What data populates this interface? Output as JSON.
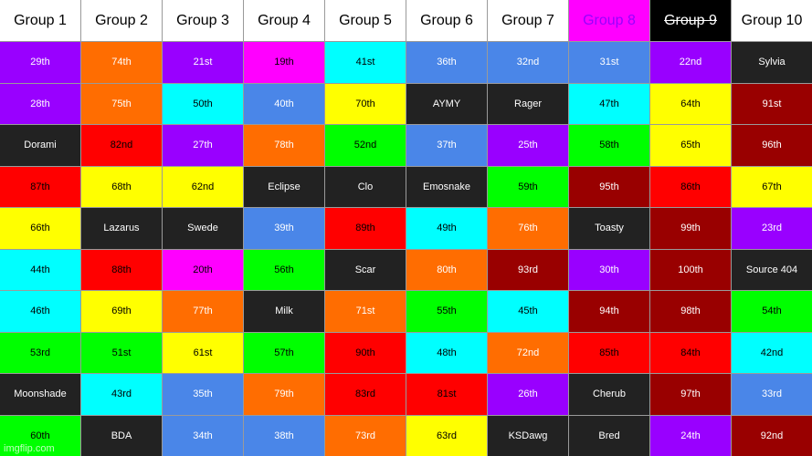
{
  "colors": {
    "purple": "#9900ff",
    "orange": "#ff6d01",
    "magenta": "#ff00ff",
    "cyan": "#00ffff",
    "blue": "#4a86e8",
    "dark": "#222222",
    "red": "#ff0000",
    "green": "#00ff00",
    "yellow": "#ffff00",
    "maroon": "#990000",
    "white": "#ffffff",
    "black": "#000000"
  },
  "headers": [
    {
      "label": "Group 1",
      "bg": "white",
      "fg": "black",
      "struck": false
    },
    {
      "label": "Group 2",
      "bg": "white",
      "fg": "black",
      "struck": false
    },
    {
      "label": "Group 3",
      "bg": "white",
      "fg": "black",
      "struck": false
    },
    {
      "label": "Group 4",
      "bg": "white",
      "fg": "black",
      "struck": false
    },
    {
      "label": "Group 5",
      "bg": "white",
      "fg": "black",
      "struck": false
    },
    {
      "label": "Group 6",
      "bg": "white",
      "fg": "black",
      "struck": false
    },
    {
      "label": "Group 7",
      "bg": "white",
      "fg": "black",
      "struck": false
    },
    {
      "label": "Group 8",
      "bg": "magenta",
      "fg": "purple",
      "struck": false
    },
    {
      "label": "Group 9",
      "bg": "black",
      "fg": "white",
      "struck": true
    },
    {
      "label": "Group 10",
      "bg": "white",
      "fg": "black",
      "struck": false
    }
  ],
  "rows": [
    [
      {
        "text": "29th",
        "color": "purple"
      },
      {
        "text": "74th",
        "color": "orange"
      },
      {
        "text": "21st",
        "color": "purple"
      },
      {
        "text": "19th",
        "color": "magenta"
      },
      {
        "text": "41st",
        "color": "cyan"
      },
      {
        "text": "36th",
        "color": "blue"
      },
      {
        "text": "32nd",
        "color": "blue"
      },
      {
        "text": "31st",
        "color": "blue"
      },
      {
        "text": "22nd",
        "color": "purple"
      },
      {
        "text": "Sylvia",
        "color": "dark"
      }
    ],
    [
      {
        "text": "28th",
        "color": "purple"
      },
      {
        "text": "75th",
        "color": "orange"
      },
      {
        "text": "50th",
        "color": "cyan"
      },
      {
        "text": "40th",
        "color": "blue"
      },
      {
        "text": "70th",
        "color": "yellow"
      },
      {
        "text": "AYMY",
        "color": "dark"
      },
      {
        "text": "Rager",
        "color": "dark"
      },
      {
        "text": "47th",
        "color": "cyan"
      },
      {
        "text": "64th",
        "color": "yellow"
      },
      {
        "text": "91st",
        "color": "maroon"
      }
    ],
    [
      {
        "text": "Dorami",
        "color": "dark"
      },
      {
        "text": "82nd",
        "color": "red"
      },
      {
        "text": "27th",
        "color": "purple"
      },
      {
        "text": "78th",
        "color": "orange"
      },
      {
        "text": "52nd",
        "color": "green"
      },
      {
        "text": "37th",
        "color": "blue"
      },
      {
        "text": "25th",
        "color": "purple"
      },
      {
        "text": "58th",
        "color": "green"
      },
      {
        "text": "65th",
        "color": "yellow"
      },
      {
        "text": "96th",
        "color": "maroon"
      }
    ],
    [
      {
        "text": "87th",
        "color": "red"
      },
      {
        "text": "68th",
        "color": "yellow"
      },
      {
        "text": "62nd",
        "color": "yellow"
      },
      {
        "text": "Eclipse",
        "color": "dark"
      },
      {
        "text": "Clo",
        "color": "dark"
      },
      {
        "text": "Emosnake",
        "color": "dark"
      },
      {
        "text": "59th",
        "color": "green"
      },
      {
        "text": "95th",
        "color": "maroon"
      },
      {
        "text": "86th",
        "color": "red"
      },
      {
        "text": "67th",
        "color": "yellow"
      }
    ],
    [
      {
        "text": "66th",
        "color": "yellow"
      },
      {
        "text": "Lazarus",
        "color": "dark"
      },
      {
        "text": "Swede",
        "color": "dark"
      },
      {
        "text": "39th",
        "color": "blue"
      },
      {
        "text": "89th",
        "color": "red"
      },
      {
        "text": "49th",
        "color": "cyan"
      },
      {
        "text": "76th",
        "color": "orange"
      },
      {
        "text": "Toasty",
        "color": "dark"
      },
      {
        "text": "99th",
        "color": "maroon"
      },
      {
        "text": "23rd",
        "color": "purple"
      }
    ],
    [
      {
        "text": "44th",
        "color": "cyan"
      },
      {
        "text": "88th",
        "color": "red"
      },
      {
        "text": "20th",
        "color": "magenta"
      },
      {
        "text": "56th",
        "color": "green"
      },
      {
        "text": "Scar",
        "color": "dark"
      },
      {
        "text": "80th",
        "color": "orange"
      },
      {
        "text": "93rd",
        "color": "maroon"
      },
      {
        "text": "30th",
        "color": "purple"
      },
      {
        "text": "100th",
        "color": "maroon"
      },
      {
        "text": "Source 404",
        "color": "dark"
      }
    ],
    [
      {
        "text": "46th",
        "color": "cyan"
      },
      {
        "text": "69th",
        "color": "yellow"
      },
      {
        "text": "77th",
        "color": "orange"
      },
      {
        "text": "Milk",
        "color": "dark"
      },
      {
        "text": "71st",
        "color": "orange"
      },
      {
        "text": "55th",
        "color": "green"
      },
      {
        "text": "45th",
        "color": "cyan"
      },
      {
        "text": "94th",
        "color": "maroon"
      },
      {
        "text": "98th",
        "color": "maroon"
      },
      {
        "text": "54th",
        "color": "green"
      }
    ],
    [
      {
        "text": "53rd",
        "color": "green"
      },
      {
        "text": "51st",
        "color": "green"
      },
      {
        "text": "61st",
        "color": "yellow"
      },
      {
        "text": "57th",
        "color": "green"
      },
      {
        "text": "90th",
        "color": "red"
      },
      {
        "text": "48th",
        "color": "cyan"
      },
      {
        "text": "72nd",
        "color": "orange"
      },
      {
        "text": "85th",
        "color": "red"
      },
      {
        "text": "84th",
        "color": "red"
      },
      {
        "text": "42nd",
        "color": "cyan"
      }
    ],
    [
      {
        "text": "Moonshade",
        "color": "dark"
      },
      {
        "text": "43rd",
        "color": "cyan"
      },
      {
        "text": "35th",
        "color": "blue"
      },
      {
        "text": "79th",
        "color": "orange"
      },
      {
        "text": "83rd",
        "color": "red"
      },
      {
        "text": "81st",
        "color": "red"
      },
      {
        "text": "26th",
        "color": "purple"
      },
      {
        "text": "Cherub",
        "color": "dark"
      },
      {
        "text": "97th",
        "color": "maroon"
      },
      {
        "text": "33rd",
        "color": "blue"
      }
    ],
    [
      {
        "text": "60th",
        "color": "green"
      },
      {
        "text": "BDA",
        "color": "dark"
      },
      {
        "text": "34th",
        "color": "blue"
      },
      {
        "text": "38th",
        "color": "blue"
      },
      {
        "text": "73rd",
        "color": "orange"
      },
      {
        "text": "63rd",
        "color": "yellow"
      },
      {
        "text": "KSDawg",
        "color": "dark"
      },
      {
        "text": "Bred",
        "color": "dark"
      },
      {
        "text": "24th",
        "color": "purple"
      },
      {
        "text": "92nd",
        "color": "maroon"
      }
    ]
  ],
  "watermark": "imgflip.com"
}
